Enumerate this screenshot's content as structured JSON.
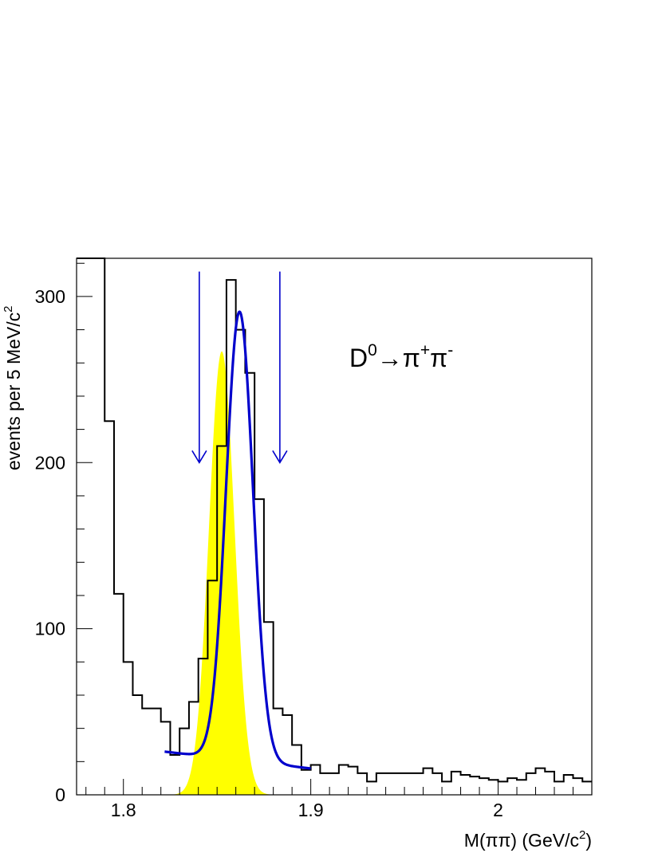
{
  "chart_data": {
    "type": "histogram",
    "ylabel": "events per 5 MeV/c",
    "ylabel_sup": "2",
    "xlabel": "M(ππ) (GeV/c",
    "xlabel_sup": "2",
    "xlabel_end": ")",
    "annotation": {
      "text_main": "D",
      "text_sup0": "0",
      "text_arrow": "→π",
      "text_sup_plus": "+",
      "text_pi": "π",
      "text_sup_minus": "-"
    },
    "xlim": [
      1.775,
      2.05
    ],
    "ylim": [
      0,
      323
    ],
    "x_ticks": [
      1.8,
      1.9,
      2.0
    ],
    "x_tick_labels": [
      "1.8",
      "1.9",
      "2"
    ],
    "y_ticks": [
      0,
      100,
      200,
      300
    ],
    "y_tick_labels": [
      "0",
      "100",
      "200",
      "300"
    ],
    "bin_width": 0.005,
    "histogram": {
      "x_start": 1.775,
      "counts": [
        330,
        330,
        330,
        225,
        121,
        80,
        60,
        52,
        52,
        44,
        24,
        40,
        56,
        82,
        129,
        210,
        310,
        280,
        254,
        178,
        104,
        52,
        48,
        30,
        15,
        18,
        13,
        13,
        18,
        17,
        13,
        8,
        13,
        13,
        13,
        13,
        13,
        16,
        13,
        8,
        14,
        12,
        11,
        10,
        9,
        8,
        10,
        9,
        13,
        16,
        14,
        8,
        12,
        10,
        8
      ],
      "color": "#000000"
    },
    "fit_curve": {
      "color": "#0000cc",
      "x_range": [
        1.822,
        1.9
      ],
      "background": {
        "a": 26,
        "b": 1.822,
        "slope": -130
      },
      "gaussian": {
        "amplitude": 270,
        "mean": 1.862,
        "sigma": 0.0072
      }
    },
    "signal_shape": {
      "color": "#ffff00",
      "amplitude": 267,
      "mean": 1.8525,
      "sigma": 0.0068
    },
    "arrows": {
      "color": "#0000cc",
      "positions": [
        1.8405,
        1.8835
      ],
      "y_top": 315,
      "y_tip": 200
    }
  }
}
